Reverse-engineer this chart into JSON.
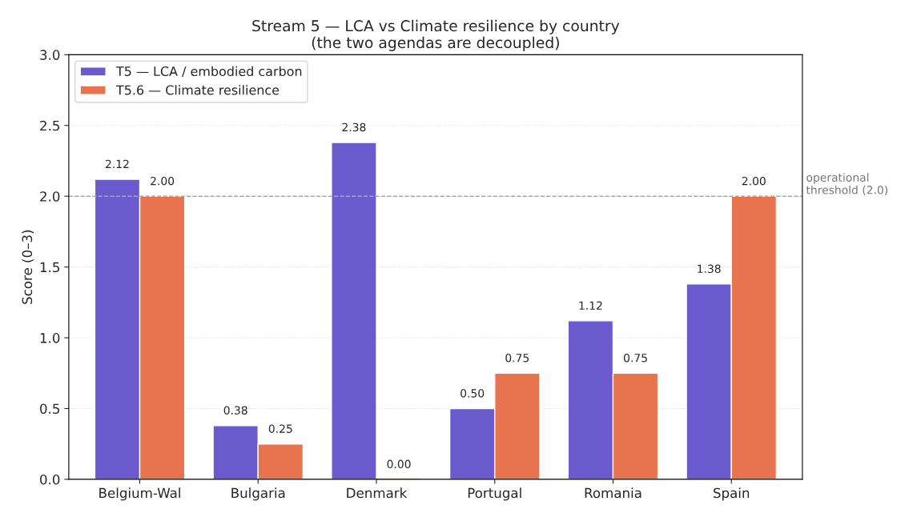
{
  "chart_data": {
    "type": "bar",
    "title": "Stream 5 — LCA vs Climate resilience by country\n(the two agendas are decoupled)",
    "ylabel": "Score (0–3)",
    "categories": [
      "Belgium-Wal",
      "Bulgaria",
      "Denmark",
      "Portugal",
      "Romania",
      "Spain"
    ],
    "series": [
      {
        "name": "T5 — LCA / embodied carbon",
        "color": "#6a5acd",
        "values": [
          2.12,
          0.38,
          2.38,
          0.5,
          1.12,
          1.38
        ],
        "value_labels": [
          "2.12",
          "0.38",
          "2.38",
          "0.50",
          "1.12",
          "1.38"
        ]
      },
      {
        "name": "T5.6 — Climate resilience",
        "color": "#e8734f",
        "values": [
          2.0,
          0.25,
          0.0,
          0.75,
          0.75,
          2.0
        ],
        "value_labels": [
          "2.00",
          "0.25",
          "0.00",
          "0.75",
          "0.75",
          "2.00"
        ]
      }
    ],
    "ylim": [
      0,
      3
    ],
    "yticks": [
      {
        "value": 0,
        "label": "0.0"
      },
      {
        "value": 0.5,
        "label": "0.5"
      },
      {
        "value": 1,
        "label": "1.0"
      },
      {
        "value": 1.5,
        "label": "1.5"
      },
      {
        "value": 2,
        "label": "2.0"
      },
      {
        "value": 2.5,
        "label": "2.5"
      },
      {
        "value": 3,
        "label": "3.0"
      }
    ],
    "ref_lines": [
      {
        "axis": "y",
        "value": 2.0,
        "label": "operational\nthreshold (2.0)",
        "color": "#aaaaaa",
        "line_style": "dashed"
      }
    ],
    "grid": "y",
    "legend": "top left"
  }
}
